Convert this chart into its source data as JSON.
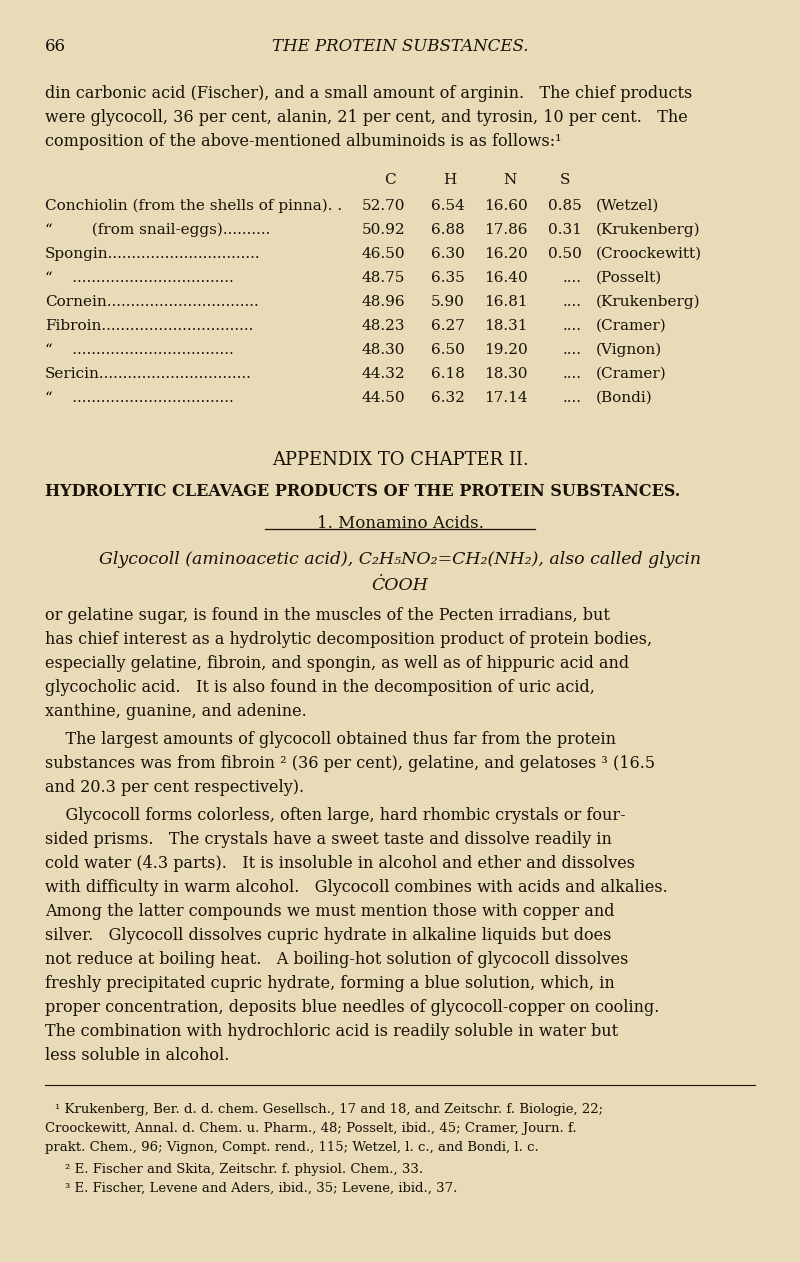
{
  "bg_color": "#e8dbb8",
  "text_color": "#1a1008",
  "page_number": "66",
  "header_title": "THE PROTEIN SUBSTANCES.",
  "table_rows": [
    [
      "Conchiolin (from the shells of pinna). .",
      "52.70",
      "6.54",
      "16.60",
      "0.85",
      "(Wetzel)"
    ],
    [
      "“        (from snail-eggs)..........",
      "50.92",
      "6.88",
      "17.86",
      "0.31",
      "(Krukenberg)"
    ],
    [
      "Spongin................................",
      "46.50",
      "6.30",
      "16.20",
      "0.50",
      "(Croockewitt)"
    ],
    [
      "“    ..................................",
      "48.75",
      "6.35",
      "16.40",
      "....",
      "(Posselt)"
    ],
    [
      "Cornein................................",
      "48.96",
      "5.90",
      "16.81",
      "....",
      "(Krukenberg)"
    ],
    [
      "Fibroin................................",
      "48.23",
      "6.27",
      "18.31",
      "....",
      "(Cramer)"
    ],
    [
      "“    ..................................",
      "48.30",
      "6.50",
      "19.20",
      "....",
      "(Vignon)"
    ],
    [
      "Sericin................................",
      "44.32",
      "6.18",
      "18.30",
      "....",
      "(Cramer)"
    ],
    [
      "“    ..................................",
      "44.50",
      "6.32",
      "17.14",
      "....",
      "(Bondi)"
    ]
  ],
  "appendix_title": "APPENDIX TO CHAPTER II.",
  "appendix_subtitle": "HYDROLYTIC CLEAVAGE PRODUCTS OF THE PROTEIN SUBSTANCES.",
  "section_title": "1. Monamino Acids.",
  "footnote1a": "¹ Krukenberg, Ber. d. d. chem. Gesellsch., 17 and 18, and Zeitschr. f. Biologie, 22;",
  "footnote1b": "Croockewitt, Annal. d. Chem. u. Pharm., 48; Posselt, ibid., 45; Cramer, Journ. f.",
  "footnote1c": "prakt. Chem., 96; Vignon, Compt. rend., 115; Wetzel, l. c., and Bondi, l. c.",
  "footnote2": "² E. Fischer and Skita, Zeitschr. f. physiol. Chem., 33.",
  "footnote3": "³ E. Fischer, Levene and Aders, ibid., 35; Levene, ibid., 37."
}
